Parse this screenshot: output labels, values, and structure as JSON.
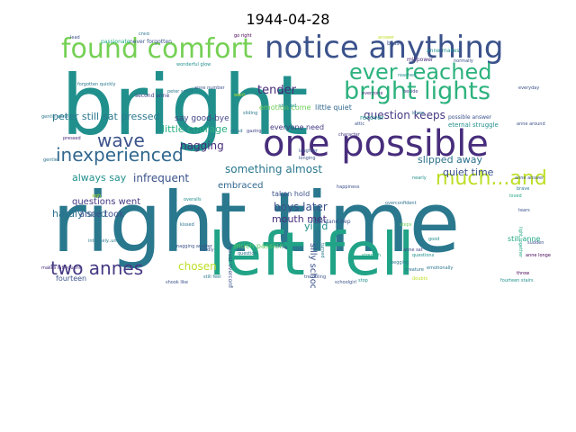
{
  "title": "1944-04-28",
  "words": [
    {
      "text": "bright",
      "color": "#21908d"
    },
    {
      "text": "right time",
      "color": "#2a788e"
    },
    {
      "text": "left fell",
      "color": "#20a386"
    },
    {
      "text": "one possible",
      "color": "#472d7b"
    },
    {
      "text": "notice anything",
      "color": "#3b528b"
    },
    {
      "text": "found comfort",
      "color": "#75d054"
    },
    {
      "text": "bright lights",
      "color": "#2db27d"
    },
    {
      "text": "ever reached",
      "color": "#2db27d"
    },
    {
      "text": "inexperienced",
      "color": "#31688e"
    },
    {
      "text": "wave",
      "color": "#3b528b"
    },
    {
      "text": "much...and",
      "color": "#bddf26"
    },
    {
      "text": "two annes",
      "color": "#443983"
    },
    {
      "text": "slipped away",
      "color": "#2c728e"
    },
    {
      "text": "quiet time",
      "color": "#3b528b"
    },
    {
      "text": "something almost",
      "color": "#2a788e"
    },
    {
      "text": "boys later",
      "color": "#3b528b"
    },
    {
      "text": "mouth met",
      "color": "#472d7b"
    },
    {
      "text": "yield",
      "color": "#21908d"
    },
    {
      "text": "chosen",
      "color": "#bddf26"
    },
    {
      "text": "questions went",
      "color": "#443983"
    },
    {
      "text": "infrequent",
      "color": "#3b528b"
    },
    {
      "text": "embraced",
      "color": "#31688e"
    },
    {
      "text": "sat pressed",
      "color": "#2a788e"
    },
    {
      "text": "peter still",
      "color": "#2a788e"
    },
    {
      "text": "little courage",
      "color": "#28ae80"
    },
    {
      "text": "nagging",
      "color": "#472d7b"
    },
    {
      "text": "tender",
      "color": "#482878"
    },
    {
      "text": "question keeps",
      "color": "#443983"
    },
    {
      "text": "always say",
      "color": "#21908d"
    },
    {
      "text": "hardly said",
      "color": "#2c728e"
    },
    {
      "text": "anne took",
      "color": "#3b528b"
    },
    {
      "text": "silly schoolgirl",
      "color": "#3b528b"
    },
    {
      "text": "taken hold",
      "color": "#3b528b"
    },
    {
      "text": "everyone need",
      "color": "#443983"
    },
    {
      "text": "much passion",
      "color": "#5ec962"
    },
    {
      "text": "emotion come",
      "color": "#6ece58"
    },
    {
      "text": "little quiet",
      "color": "#31688e"
    },
    {
      "text": "say good-bye",
      "color": "#414487"
    },
    {
      "text": "second anne",
      "color": "#414487"
    },
    {
      "text": "possible answer",
      "color": "#3b528b"
    },
    {
      "text": "eternal struggle",
      "color": "#21908d"
    },
    {
      "text": "recover",
      "color": "#21908d"
    },
    {
      "text": "understand bep",
      "color": "#3b528b"
    },
    {
      "text": "still anne",
      "color": "#22a884"
    },
    {
      "text": "intensely..until",
      "color": "#2a788e"
    },
    {
      "text": "fourteen",
      "color": "#3b528b"
    },
    {
      "text": "never forgotten",
      "color": "#3b528b"
    },
    {
      "text": "passionate",
      "color": "#22a884"
    },
    {
      "text": "millpower",
      "color": "#472d7b"
    },
    {
      "text": "anne makes",
      "color": "#21908d"
    },
    {
      "text": "never overconfident",
      "color": "#3b528b"
    },
    {
      "text": "turned",
      "color": "#2a788e"
    },
    {
      "text": "strength",
      "color": "#22a884"
    },
    {
      "text": "character",
      "color": "#443983"
    },
    {
      "text": "lead",
      "color": "#3b528b"
    },
    {
      "text": "child",
      "color": "#2c728e"
    },
    {
      "text": "go right",
      "color": "#440154"
    },
    {
      "text": "boss",
      "color": "#3b528b"
    },
    {
      "text": "forgotten quickly",
      "color": "#2a788e"
    },
    {
      "text": "wonderful glow",
      "color": "#21908d"
    },
    {
      "text": "reached",
      "color": "#21908d"
    },
    {
      "text": "normally",
      "color": "#3b528b"
    },
    {
      "text": "pressed",
      "color": "#482878"
    },
    {
      "text": "overconfident",
      "color": "#2c728e"
    },
    {
      "text": "fourteen stairs",
      "color": "#21908d"
    },
    {
      "text": "light together",
      "color": "#22a884"
    },
    {
      "text": "everyday",
      "color": "#3b528b"
    },
    {
      "text": "anne around",
      "color": "#3b528b"
    },
    {
      "text": "beside",
      "color": "#414487"
    },
    {
      "text": "cloud",
      "color": "#2a788e"
    },
    {
      "text": "laughter",
      "color": "#3b528b"
    },
    {
      "text": "longing",
      "color": "#3b528b"
    },
    {
      "text": "anne sat",
      "color": "#414487"
    },
    {
      "text": "begging",
      "color": "#2a788e"
    },
    {
      "text": "creature",
      "color": "#2c728e"
    },
    {
      "text": "showed",
      "color": "#21908d"
    },
    {
      "text": "gentle anne",
      "color": "#2a788e"
    },
    {
      "text": "sliding",
      "color": "#2a788e"
    },
    {
      "text": "steps",
      "color": "#6ece58"
    },
    {
      "text": "brave",
      "color": "#2a788e"
    },
    {
      "text": "makes infrequent",
      "color": "#472d7b"
    },
    {
      "text": "shook like",
      "color": "#3b528b"
    },
    {
      "text": "trembling",
      "color": "#3b528b"
    },
    {
      "text": "throw",
      "color": "#440154"
    },
    {
      "text": "sudden",
      "color": "#3b528b"
    },
    {
      "text": "sigh",
      "color": "#bddf26"
    },
    {
      "text": "tears",
      "color": "#3b528b"
    },
    {
      "text": "good",
      "color": "#21908d"
    },
    {
      "text": "hardly",
      "color": "#3b528b"
    },
    {
      "text": "gentle",
      "color": "#2c728e"
    },
    {
      "text": "loved",
      "color": "#22a884"
    },
    {
      "text": "silly",
      "color": "#2a788e"
    },
    {
      "text": "anne number",
      "color": "#3b528b"
    },
    {
      "text": "peter schiff",
      "color": "#2a788e"
    },
    {
      "text": "gazing",
      "color": "#414487"
    },
    {
      "text": "emotionally",
      "color": "#2a788e"
    },
    {
      "text": "overalls",
      "color": "#21908d"
    },
    {
      "text": "kissed",
      "color": "#2c728e"
    },
    {
      "text": "nagging answer",
      "color": "#3b528b"
    },
    {
      "text": "happiness",
      "color": "#3b528b"
    },
    {
      "text": "attic",
      "color": "#3b528b"
    },
    {
      "text": "doubts",
      "color": "#bddf26"
    },
    {
      "text": "nearly",
      "color": "#21908d"
    },
    {
      "text": "questions",
      "color": "#21908d"
    },
    {
      "text": "schoolgirl",
      "color": "#3b528b"
    },
    {
      "text": "still feel",
      "color": "#2a788e"
    },
    {
      "text": "anne longed",
      "color": "#440154"
    },
    {
      "text": "everyone",
      "color": "#472d7b"
    },
    {
      "text": "question",
      "color": "#2c728e"
    },
    {
      "text": "stop",
      "color": "#21908d"
    },
    {
      "text": "want",
      "color": "#bddf26"
    },
    {
      "text": "knew",
      "color": "#2a788e"
    },
    {
      "text": "anne answer",
      "color": "#3b528b"
    },
    {
      "text": "answer",
      "color": "#bddf26"
    }
  ]
}
